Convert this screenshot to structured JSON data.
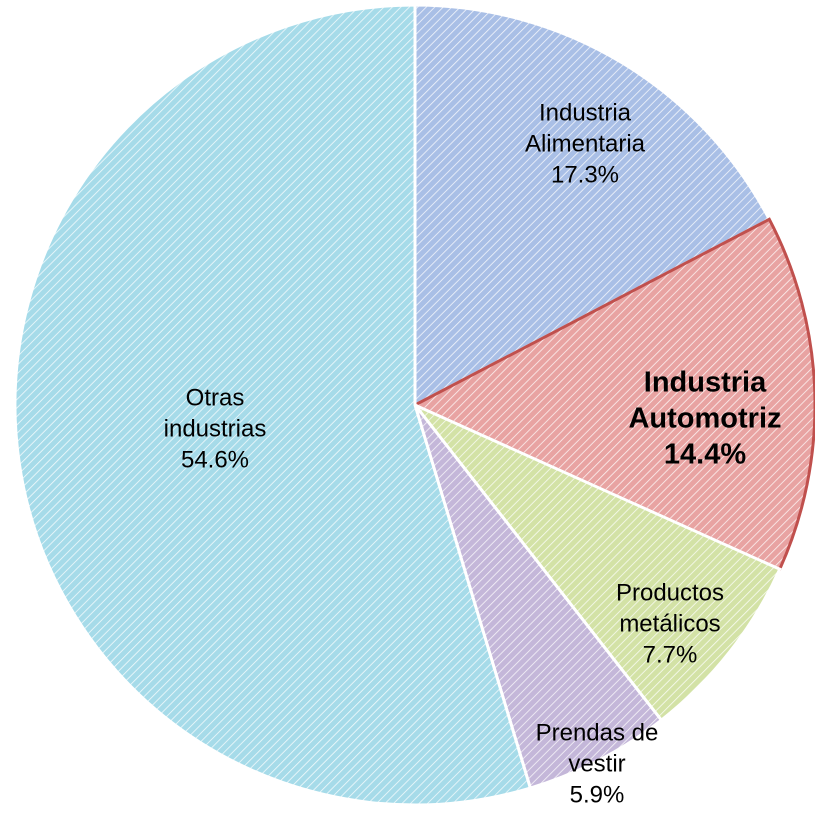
{
  "chart_data": {
    "type": "pie",
    "categories": [
      [
        "Industria",
        "Alimentaria"
      ],
      [
        "Industria",
        "Automotriz"
      ],
      [
        "Productos",
        "metálicos"
      ],
      [
        "Prendas de",
        "vestir"
      ],
      [
        "Otras",
        "industrias"
      ]
    ],
    "values": [
      17.3,
      14.4,
      7.7,
      5.9,
      54.6
    ],
    "value_labels": [
      "17.3%",
      "14.4%",
      "7.7%",
      "5.9%",
      "54.6%"
    ],
    "colors": [
      "#a9bfe6",
      "#e8a3a2",
      "#d3e2a6",
      "#c4b7d9",
      "#a6dbe9"
    ],
    "edge_colors": [
      "#ffffff",
      "#c0504d",
      "#ffffff",
      "#ffffff",
      "#ffffff"
    ]
  }
}
